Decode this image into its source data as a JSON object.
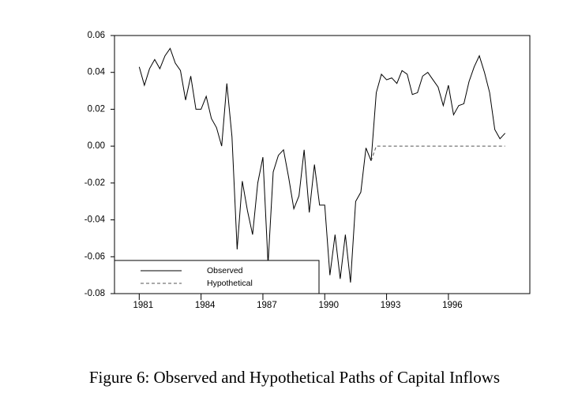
{
  "chart_data": {
    "type": "line",
    "caption": "Figure 6: Observed and Hypothetical Paths of Capital Inflows",
    "x": [
      1981.0,
      1981.25,
      1981.5,
      1981.75,
      1982.0,
      1982.25,
      1982.5,
      1982.75,
      1983.0,
      1983.25,
      1983.5,
      1983.75,
      1984.0,
      1984.25,
      1984.5,
      1984.75,
      1985.0,
      1985.25,
      1985.5,
      1985.75,
      1986.0,
      1986.25,
      1986.5,
      1986.75,
      1987.0,
      1987.25,
      1987.5,
      1987.75,
      1988.0,
      1988.25,
      1988.5,
      1988.75,
      1989.0,
      1989.25,
      1989.5,
      1989.75,
      1990.0,
      1990.25,
      1990.5,
      1990.75,
      1991.0,
      1991.25,
      1991.5,
      1991.75,
      1992.0,
      1992.25,
      1992.5,
      1992.75,
      1993.0,
      1993.25,
      1993.5,
      1993.75,
      1994.0,
      1994.25,
      1994.5,
      1994.75,
      1995.0,
      1995.25,
      1995.5,
      1995.75,
      1996.0,
      1996.25,
      1996.5,
      1996.75,
      1997.0,
      1997.25,
      1997.5,
      1997.75,
      1998.0,
      1998.25,
      1998.5,
      1998.75
    ],
    "series": [
      {
        "name": "Observed",
        "color": "#000000",
        "style": "solid",
        "values": [
          0.043,
          0.033,
          0.042,
          0.047,
          0.042,
          0.049,
          0.053,
          0.045,
          0.041,
          0.025,
          0.038,
          0.02,
          0.02,
          0.027,
          0.015,
          0.01,
          0.0,
          0.034,
          0.005,
          -0.056,
          -0.019,
          -0.035,
          -0.048,
          -0.02,
          -0.006,
          -0.064,
          -0.014,
          -0.005,
          -0.002,
          -0.017,
          -0.034,
          -0.027,
          -0.002,
          -0.036,
          -0.01,
          -0.032,
          -0.032,
          -0.07,
          -0.048,
          -0.072,
          -0.048,
          -0.074,
          -0.03,
          -0.025,
          -0.001,
          -0.008,
          0.029,
          0.039,
          0.036,
          0.037,
          0.034,
          0.041,
          0.039,
          0.028,
          0.029,
          0.038,
          0.04,
          0.036,
          0.032,
          0.022,
          0.033,
          0.017,
          0.022,
          0.023,
          0.035,
          0.043,
          0.049,
          0.04,
          0.029,
          0.009,
          0.004,
          0.007
        ]
      },
      {
        "name": "Hypothetical",
        "color": "#555555",
        "style": "dashed",
        "values": [
          null,
          null,
          null,
          null,
          null,
          null,
          null,
          null,
          null,
          null,
          null,
          null,
          null,
          null,
          null,
          null,
          null,
          null,
          null,
          null,
          null,
          null,
          null,
          null,
          null,
          null,
          null,
          null,
          null,
          null,
          null,
          null,
          null,
          null,
          null,
          null,
          null,
          null,
          null,
          null,
          null,
          null,
          null,
          null,
          null,
          -0.008,
          0,
          0,
          0,
          0,
          0,
          0,
          0,
          0,
          0,
          0,
          0,
          0,
          0,
          0,
          0,
          0,
          0,
          0,
          0,
          0,
          0,
          0,
          0,
          0,
          0,
          0
        ]
      }
    ],
    "xlim": [
      1979.8,
      1999.95
    ],
    "xticks": [
      1981,
      1984,
      1987,
      1990,
      1993,
      1996
    ],
    "ylim": [
      -0.08,
      0.06
    ],
    "yticks": [
      -0.08,
      -0.06,
      -0.04,
      -0.02,
      {
        "value": 0,
        "label": "0.00"
      },
      0.02,
      0.04,
      0.06
    ],
    "legend": "lower left"
  }
}
